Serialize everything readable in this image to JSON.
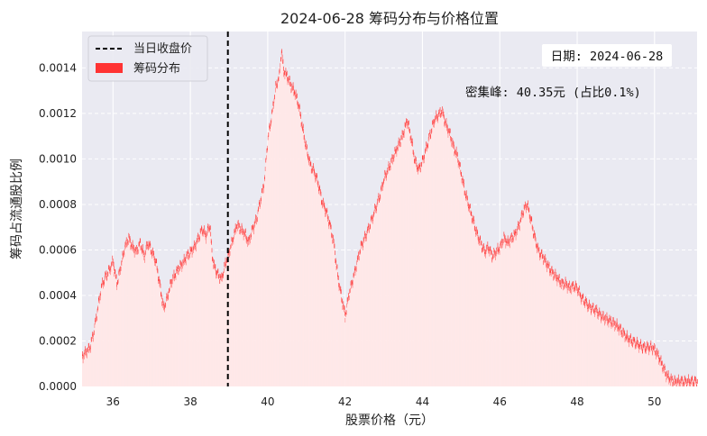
{
  "chart_data": {
    "type": "bar",
    "title": "2024-06-28 筹码分布与价格位置",
    "xlabel": "股票价格（元）",
    "ylabel": "筹码占流通股比例",
    "xlim": [
      35.2,
      51.1
    ],
    "ylim": [
      0,
      0.00156
    ],
    "x_ticks": [
      36,
      38,
      40,
      42,
      44,
      46,
      48,
      50
    ],
    "x_tick_labels": [
      "36",
      "38",
      "40",
      "42",
      "44",
      "46",
      "48",
      "50"
    ],
    "y_ticks": [
      0,
      0.0002,
      0.0004,
      0.0006,
      0.0008,
      0.001,
      0.0012,
      0.0014
    ],
    "y_tick_labels": [
      "0.0000",
      "0.0002",
      "0.0004",
      "0.0006",
      "0.0008",
      "0.0010",
      "0.0012",
      "0.0014"
    ],
    "grid": true,
    "legend_position": "top-left",
    "legend": {
      "close_line": "当日收盘价",
      "distribution": "筹码分布"
    },
    "close_price": 38.97,
    "annotations": {
      "date_box": "日期: 2024-06-28",
      "peak_text": "密集峰: 40.35元 (占比0.1%)"
    },
    "colors": {
      "bar_edge": "#ff3333",
      "bar_fill": "#ffe8e8",
      "background": "#eaeaf2",
      "close_line": "#000000"
    },
    "distribution_profile": [
      [
        35.2,
        0.00014
      ],
      [
        35.4,
        0.00018
      ],
      [
        35.5,
        0.00025
      ],
      [
        35.6,
        0.00035
      ],
      [
        35.7,
        0.00045
      ],
      [
        35.8,
        0.00049
      ],
      [
        35.9,
        0.00052
      ],
      [
        36.0,
        0.00056
      ],
      [
        36.05,
        0.0005
      ],
      [
        36.1,
        0.00046
      ],
      [
        36.2,
        0.00054
      ],
      [
        36.3,
        0.00062
      ],
      [
        36.4,
        0.00066
      ],
      [
        36.5,
        0.00062
      ],
      [
        36.6,
        0.0006
      ],
      [
        36.7,
        0.00064
      ],
      [
        36.8,
        0.00058
      ],
      [
        36.9,
        0.00064
      ],
      [
        37.0,
        0.0006
      ],
      [
        37.1,
        0.00056
      ],
      [
        37.2,
        0.00046
      ],
      [
        37.3,
        0.00035
      ],
      [
        37.4,
        0.0004
      ],
      [
        37.5,
        0.00047
      ],
      [
        37.6,
        0.0005
      ],
      [
        37.7,
        0.00053
      ],
      [
        37.8,
        0.00055
      ],
      [
        37.9,
        0.00058
      ],
      [
        38.0,
        0.0006
      ],
      [
        38.1,
        0.00062
      ],
      [
        38.2,
        0.00066
      ],
      [
        38.3,
        0.0007
      ],
      [
        38.4,
        0.00067
      ],
      [
        38.5,
        0.00072
      ],
      [
        38.55,
        0.0006
      ],
      [
        38.6,
        0.00054
      ],
      [
        38.7,
        0.0005
      ],
      [
        38.8,
        0.00048
      ],
      [
        38.9,
        0.00055
      ],
      [
        39.0,
        0.0006
      ],
      [
        39.1,
        0.00066
      ],
      [
        39.2,
        0.00072
      ],
      [
        39.3,
        0.0007
      ],
      [
        39.4,
        0.00068
      ],
      [
        39.5,
        0.00064
      ],
      [
        39.6,
        0.0007
      ],
      [
        39.7,
        0.00074
      ],
      [
        39.8,
        0.00082
      ],
      [
        39.9,
        0.0009
      ],
      [
        40.0,
        0.0011
      ],
      [
        40.1,
        0.0012
      ],
      [
        40.2,
        0.00132
      ],
      [
        40.3,
        0.00138
      ],
      [
        40.35,
        0.00149
      ],
      [
        40.4,
        0.0014
      ],
      [
        40.5,
        0.00137
      ],
      [
        40.6,
        0.00133
      ],
      [
        40.7,
        0.0013
      ],
      [
        40.8,
        0.00124
      ],
      [
        40.9,
        0.00114
      ],
      [
        41.0,
        0.00105
      ],
      [
        41.1,
        0.00098
      ],
      [
        41.2,
        0.00095
      ],
      [
        41.3,
        0.0009
      ],
      [
        41.4,
        0.00082
      ],
      [
        41.5,
        0.00078
      ],
      [
        41.6,
        0.00072
      ],
      [
        41.7,
        0.00064
      ],
      [
        41.8,
        0.0005
      ],
      [
        41.9,
        0.0004
      ],
      [
        42.0,
        0.00032
      ],
      [
        42.1,
        0.00042
      ],
      [
        42.2,
        0.00048
      ],
      [
        42.3,
        0.00055
      ],
      [
        42.4,
        0.00062
      ],
      [
        42.5,
        0.00066
      ],
      [
        42.6,
        0.0007
      ],
      [
        42.7,
        0.00075
      ],
      [
        42.8,
        0.0008
      ],
      [
        42.9,
        0.00085
      ],
      [
        43.0,
        0.00092
      ],
      [
        43.1,
        0.00096
      ],
      [
        43.2,
        0.001
      ],
      [
        43.3,
        0.00104
      ],
      [
        43.4,
        0.00108
      ],
      [
        43.5,
        0.00112
      ],
      [
        43.6,
        0.00118
      ],
      [
        43.7,
        0.0011
      ],
      [
        43.8,
        0.001
      ],
      [
        43.9,
        0.00096
      ],
      [
        44.0,
        0.001
      ],
      [
        44.1,
        0.00106
      ],
      [
        44.2,
        0.00112
      ],
      [
        44.3,
        0.00118
      ],
      [
        44.4,
        0.0012
      ],
      [
        44.5,
        0.00122
      ],
      [
        44.6,
        0.00116
      ],
      [
        44.7,
        0.00112
      ],
      [
        44.8,
        0.00106
      ],
      [
        44.9,
        0.00102
      ],
      [
        45.0,
        0.00094
      ],
      [
        45.1,
        0.00086
      ],
      [
        45.2,
        0.0008
      ],
      [
        45.3,
        0.00074
      ],
      [
        45.4,
        0.00068
      ],
      [
        45.5,
        0.00064
      ],
      [
        45.6,
        0.0006
      ],
      [
        45.7,
        0.00062
      ],
      [
        45.8,
        0.00058
      ],
      [
        45.9,
        0.0006
      ],
      [
        46.0,
        0.00062
      ],
      [
        46.1,
        0.00066
      ],
      [
        46.2,
        0.00064
      ],
      [
        46.3,
        0.00066
      ],
      [
        46.4,
        0.00068
      ],
      [
        46.5,
        0.00072
      ],
      [
        46.6,
        0.00078
      ],
      [
        46.7,
        0.00081
      ],
      [
        46.8,
        0.00074
      ],
      [
        46.9,
        0.00066
      ],
      [
        47.0,
        0.0006
      ],
      [
        47.1,
        0.00058
      ],
      [
        47.2,
        0.00055
      ],
      [
        47.3,
        0.00052
      ],
      [
        47.4,
        0.0005
      ],
      [
        47.5,
        0.00048
      ],
      [
        47.6,
        0.00046
      ],
      [
        47.7,
        0.00046
      ],
      [
        47.8,
        0.00044
      ],
      [
        47.9,
        0.00045
      ],
      [
        48.0,
        0.00044
      ],
      [
        48.1,
        0.0004
      ],
      [
        48.2,
        0.00038
      ],
      [
        48.3,
        0.00036
      ],
      [
        48.4,
        0.00035
      ],
      [
        48.5,
        0.00034
      ],
      [
        48.6,
        0.00032
      ],
      [
        48.7,
        0.00031
      ],
      [
        48.8,
        0.0003
      ],
      [
        48.9,
        0.00029
      ],
      [
        49.0,
        0.00028
      ],
      [
        49.1,
        0.00026
      ],
      [
        49.2,
        0.00024
      ],
      [
        49.3,
        0.00022
      ],
      [
        49.4,
        0.00021
      ],
      [
        49.5,
        0.0002
      ],
      [
        49.6,
        0.00019
      ],
      [
        49.7,
        0.00018
      ],
      [
        49.8,
        0.00018
      ],
      [
        49.9,
        0.00018
      ],
      [
        50.0,
        0.00017
      ],
      [
        50.1,
        0.00014
      ],
      [
        50.2,
        0.0001
      ],
      [
        50.3,
        6e-05
      ],
      [
        50.4,
        4e-05
      ],
      [
        50.5,
        3e-05
      ],
      [
        51.1,
        3e-05
      ]
    ]
  }
}
